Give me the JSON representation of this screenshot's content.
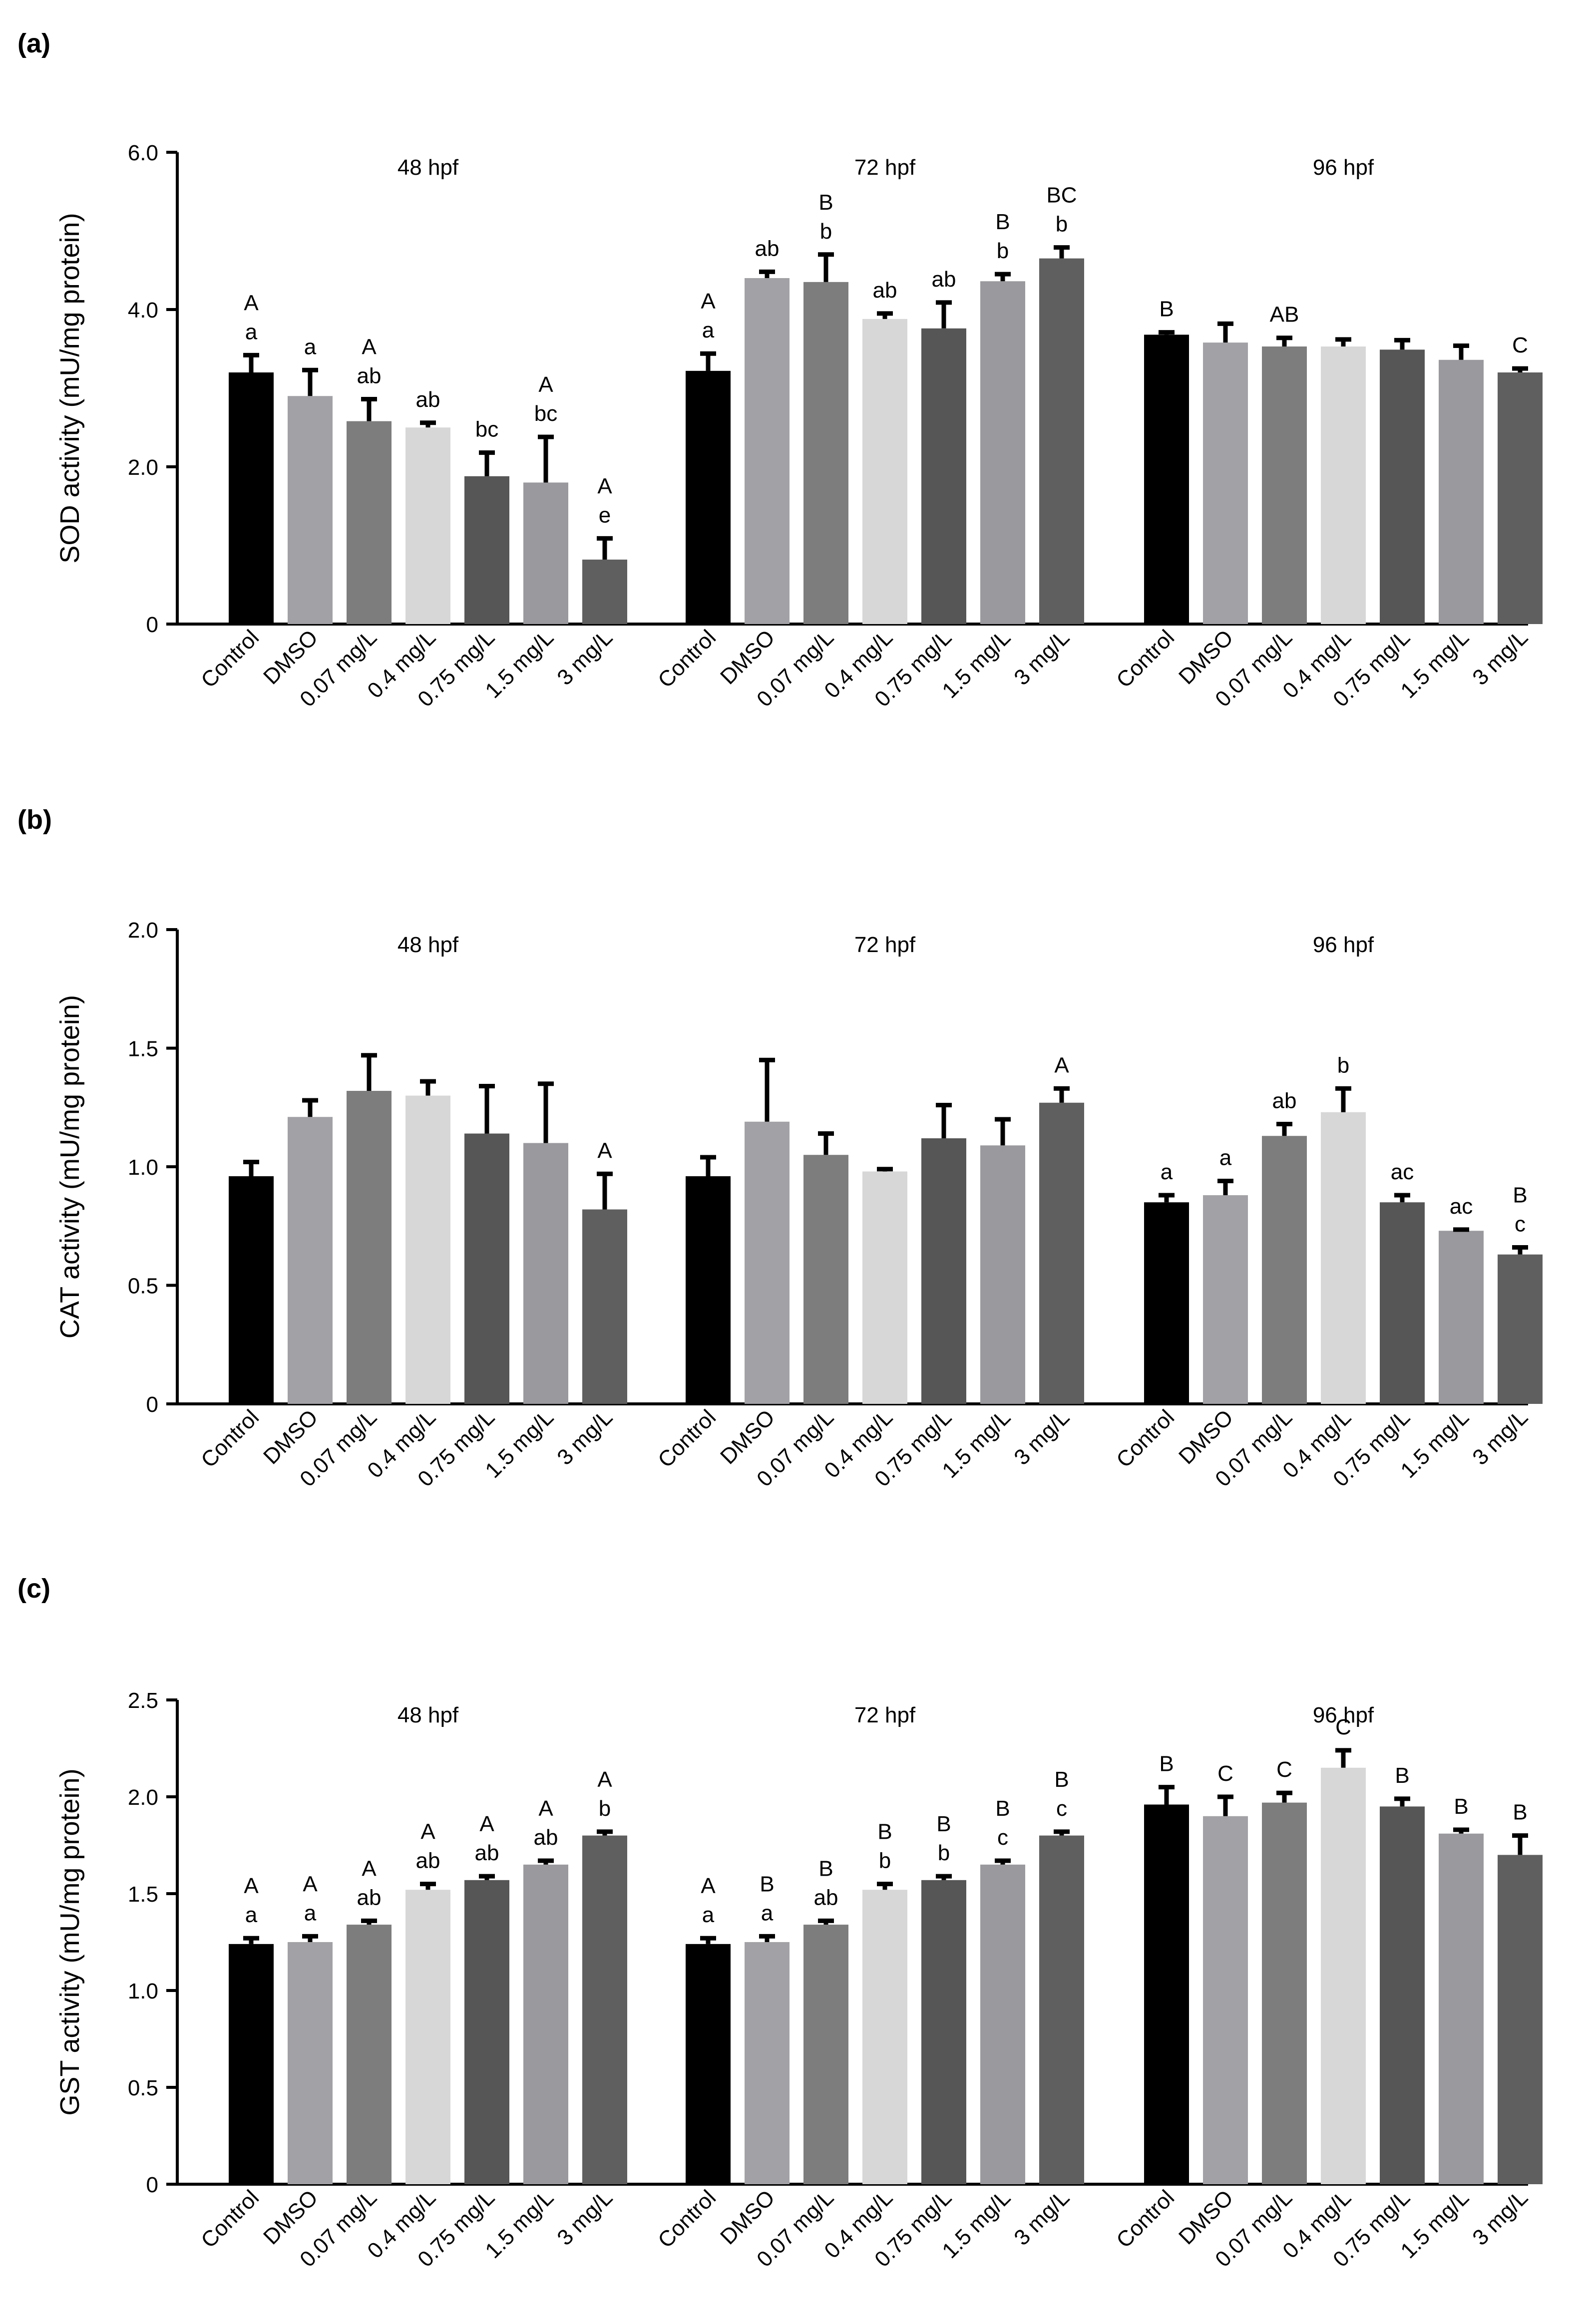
{
  "colors": [
    "#000000",
    "#a2a2a6",
    "#7d7d7d",
    "#d7d7d7",
    "#565656",
    "#9a9a9e",
    "#5f5f5f"
  ],
  "chart_data": [
    {
      "type": "bar",
      "panel": "(a)",
      "ylabel": "SOD activity (mU/mg protein)",
      "ylim": [
        0,
        6
      ],
      "yticks": [
        {
          "v": 0,
          "label": "0"
        },
        {
          "v": 2,
          "label": "2.0"
        },
        {
          "v": 4,
          "label": "4.0"
        },
        {
          "v": 6,
          "label": "6.0"
        }
      ],
      "categories": [
        "Control",
        "DMSO",
        "0.07 mg/L",
        "0.4 mg/L",
        "0.75 mg/L",
        "1.5 mg/L",
        "3 mg/L"
      ],
      "groups": [
        {
          "name": "48 hpf",
          "values": [
            3.2,
            2.9,
            2.58,
            2.5,
            1.88,
            1.8,
            0.82
          ],
          "errors": [
            0.22,
            0.33,
            0.28,
            0.06,
            0.3,
            0.58,
            0.27
          ],
          "letters": [
            [
              "A",
              "a"
            ],
            [
              "a"
            ],
            [
              "A",
              "ab"
            ],
            [
              "ab"
            ],
            [
              "bc"
            ],
            [
              "A",
              "bc"
            ],
            [
              "A",
              "e"
            ]
          ]
        },
        {
          "name": "72 hpf",
          "values": [
            3.22,
            4.4,
            4.35,
            3.88,
            3.76,
            4.36,
            4.65
          ],
          "errors": [
            0.22,
            0.08,
            0.35,
            0.07,
            0.33,
            0.09,
            0.14
          ],
          "letters": [
            [
              "A",
              "a"
            ],
            [
              "ab"
            ],
            [
              "B",
              "b"
            ],
            [
              "ab"
            ],
            [
              "ab"
            ],
            [
              "B",
              "b"
            ],
            [
              "BC",
              "b"
            ]
          ]
        },
        {
          "name": "96 hpf",
          "values": [
            3.68,
            3.58,
            3.53,
            3.53,
            3.49,
            3.36,
            3.2
          ],
          "errors": [
            0.03,
            0.24,
            0.11,
            0.09,
            0.12,
            0.18,
            0.05
          ],
          "letters": [
            [
              "B"
            ],
            [],
            [
              "AB"
            ],
            [],
            [],
            [],
            [
              "C"
            ]
          ]
        }
      ]
    },
    {
      "type": "bar",
      "panel": "(b)",
      "ylabel": "CAT activity (mU/mg protein)",
      "ylim": [
        0,
        2
      ],
      "yticks": [
        {
          "v": 0,
          "label": "0"
        },
        {
          "v": 0.5,
          "label": "0.5"
        },
        {
          "v": 1,
          "label": "1.0"
        },
        {
          "v": 1.5,
          "label": "1.5"
        },
        {
          "v": 2,
          "label": "2.0"
        }
      ],
      "categories": [
        "Control",
        "DMSO",
        "0.07 mg/L",
        "0.4 mg/L",
        "0.75 mg/L",
        "1.5 mg/L",
        "3 mg/L"
      ],
      "groups": [
        {
          "name": "48 hpf",
          "values": [
            0.96,
            1.21,
            1.32,
            1.3,
            1.14,
            1.1,
            0.82
          ],
          "errors": [
            0.06,
            0.07,
            0.15,
            0.06,
            0.2,
            0.25,
            0.15
          ],
          "letters": [
            [],
            [],
            [],
            [],
            [],
            [],
            [
              "A"
            ]
          ]
        },
        {
          "name": "72 hpf",
          "values": [
            0.96,
            1.19,
            1.05,
            0.98,
            1.12,
            1.09,
            1.27
          ],
          "errors": [
            0.08,
            0.26,
            0.09,
            0.01,
            0.14,
            0.11,
            0.06
          ],
          "letters": [
            [],
            [],
            [],
            [],
            [],
            [],
            [
              "A"
            ]
          ]
        },
        {
          "name": "96 hpf",
          "values": [
            0.85,
            0.88,
            1.13,
            1.23,
            0.85,
            0.73,
            0.63
          ],
          "errors": [
            0.03,
            0.06,
            0.05,
            0.1,
            0.03,
            0.005,
            0.03
          ],
          "letters": [
            [
              "a"
            ],
            [
              "a"
            ],
            [
              "ab"
            ],
            [
              "b"
            ],
            [
              "ac"
            ],
            [
              "ac"
            ],
            [
              "B",
              "c"
            ]
          ]
        }
      ]
    },
    {
      "type": "bar",
      "panel": "(c)",
      "ylabel": "GST activity (mU/mg protein)",
      "ylim": [
        0,
        2.5
      ],
      "yticks": [
        {
          "v": 0,
          "label": "0"
        },
        {
          "v": 0.5,
          "label": "0.5"
        },
        {
          "v": 1,
          "label": "1.0"
        },
        {
          "v": 1.5,
          "label": "1.5"
        },
        {
          "v": 2,
          "label": "2.0"
        },
        {
          "v": 2.5,
          "label": "2.5"
        }
      ],
      "categories": [
        "Control",
        "DMSO",
        "0.07 mg/L",
        "0.4 mg/L",
        "0.75 mg/L",
        "1.5 mg/L",
        "3 mg/L"
      ],
      "groups": [
        {
          "name": "48 hpf",
          "values": [
            1.24,
            1.25,
            1.34,
            1.52,
            1.57,
            1.65,
            1.8
          ],
          "errors": [
            0.03,
            0.03,
            0.02,
            0.03,
            0.02,
            0.02,
            0.02
          ],
          "letters": [
            [
              "A",
              "a"
            ],
            [
              "A",
              "a"
            ],
            [
              "A",
              "ab"
            ],
            [
              "A",
              "ab"
            ],
            [
              "A",
              "ab"
            ],
            [
              "A",
              "ab"
            ],
            [
              "A",
              "b"
            ]
          ]
        },
        {
          "name": "72 hpf",
          "values": [
            1.24,
            1.25,
            1.34,
            1.52,
            1.57,
            1.65,
            1.8
          ],
          "errors": [
            0.03,
            0.03,
            0.02,
            0.03,
            0.02,
            0.02,
            0.02
          ],
          "letters": [
            [
              "A",
              "a"
            ],
            [
              "B",
              "a"
            ],
            [
              "B",
              "ab"
            ],
            [
              "B",
              "b"
            ],
            [
              "B",
              "b"
            ],
            [
              "B",
              "c"
            ],
            [
              "B",
              "c"
            ]
          ]
        },
        {
          "name": "96 hpf",
          "values": [
            1.96,
            1.9,
            1.97,
            2.15,
            1.95,
            1.81,
            1.7
          ],
          "errors": [
            0.09,
            0.1,
            0.05,
            0.09,
            0.04,
            0.02,
            0.1
          ],
          "letters": [
            [
              "B"
            ],
            [
              "C"
            ],
            [
              "C"
            ],
            [
              "C"
            ],
            [
              "B"
            ],
            [
              "B"
            ],
            [
              "B"
            ]
          ]
        }
      ]
    }
  ]
}
